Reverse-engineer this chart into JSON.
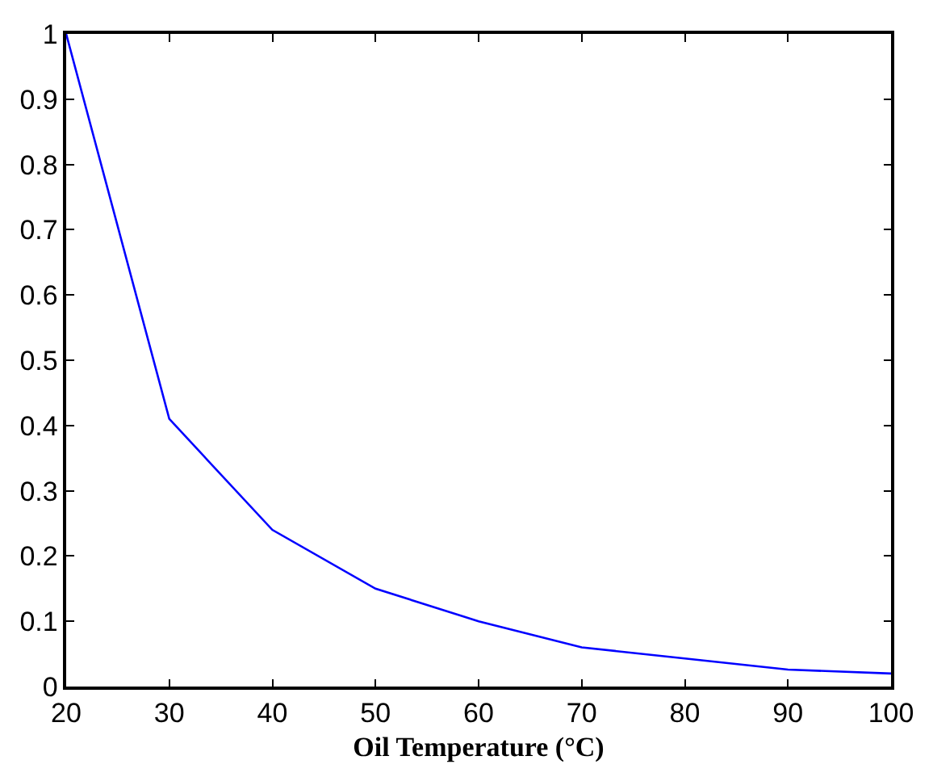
{
  "chart_data": {
    "type": "line",
    "xlabel": "Oil Temperature (°C)",
    "x": [
      20,
      30,
      40,
      50,
      60,
      70,
      80,
      90,
      100
    ],
    "series": [
      {
        "color": "#0000ff",
        "values": [
          1.0,
          0.41,
          0.24,
          0.15,
          0.1,
          0.06,
          0.043,
          0.026,
          0.02
        ]
      }
    ],
    "xlim": [
      20,
      100
    ],
    "xticks": [
      20,
      30,
      40,
      50,
      60,
      70,
      80,
      90,
      100
    ],
    "ylim": [
      0,
      1
    ],
    "yticks": [
      0,
      0.1,
      0.2,
      0.3,
      0.4,
      0.5,
      0.6,
      0.7,
      0.8,
      0.9,
      1
    ],
    "marker": "none",
    "line_style": "solid"
  }
}
